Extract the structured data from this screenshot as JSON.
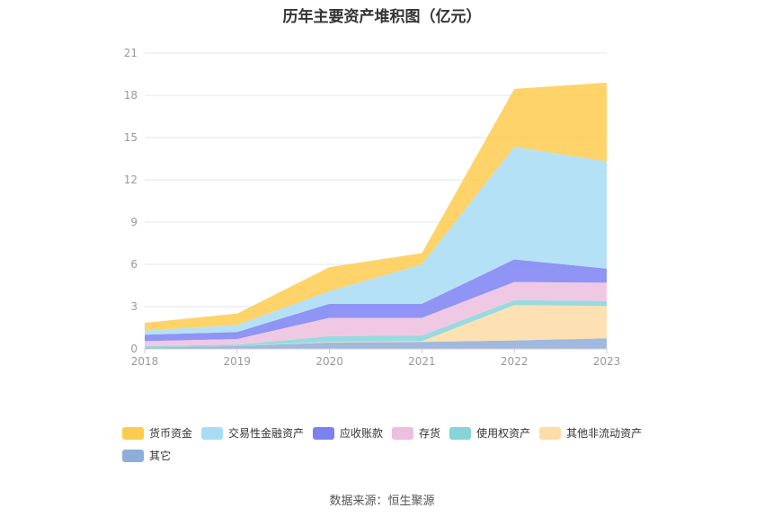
{
  "title": "历年主要资产堆积图（亿元）",
  "source": "数据来源：恒生聚源",
  "chart_data": {
    "type": "area",
    "stacked": true,
    "title": "历年主要资产堆积图（亿元）",
    "x": [
      "2018",
      "2019",
      "2020",
      "2021",
      "2022",
      "2023"
    ],
    "ylim": [
      0,
      21
    ],
    "yticks": [
      "0",
      "3",
      "6",
      "9",
      "12",
      "15",
      "18",
      "21"
    ],
    "grid": true,
    "legend_position": "bottom",
    "series": [
      {
        "name": "其它",
        "color": "#8eadda",
        "values": [
          0.1,
          0.2,
          0.45,
          0.5,
          0.6,
          0.75
        ]
      },
      {
        "name": "其他非流动资产",
        "color": "#fddca6",
        "values": [
          0.0,
          0.0,
          0.05,
          0.05,
          2.5,
          2.3
        ]
      },
      {
        "name": "使用权资产",
        "color": "#86d4d9",
        "values": [
          0.1,
          0.1,
          0.4,
          0.4,
          0.35,
          0.35
        ]
      },
      {
        "name": "存货",
        "color": "#ecbfde",
        "values": [
          0.35,
          0.4,
          1.3,
          1.25,
          1.3,
          1.3
        ]
      },
      {
        "name": "应收账款",
        "color": "#7c81f2",
        "values": [
          0.45,
          0.5,
          1.0,
          1.0,
          1.6,
          1.0
        ]
      },
      {
        "name": "交易性金融资产",
        "color": "#a8dcf6",
        "values": [
          0.3,
          0.5,
          0.9,
          2.8,
          8.0,
          7.6
        ]
      },
      {
        "name": "货币资金",
        "color": "#fdcb50",
        "values": [
          0.55,
          0.8,
          1.7,
          0.8,
          4.1,
          5.6
        ]
      }
    ],
    "legend_order": [
      "货币资金",
      "交易性金融资产",
      "应收账款",
      "存货",
      "使用权资产",
      "其他非流动资产",
      "其它"
    ]
  }
}
